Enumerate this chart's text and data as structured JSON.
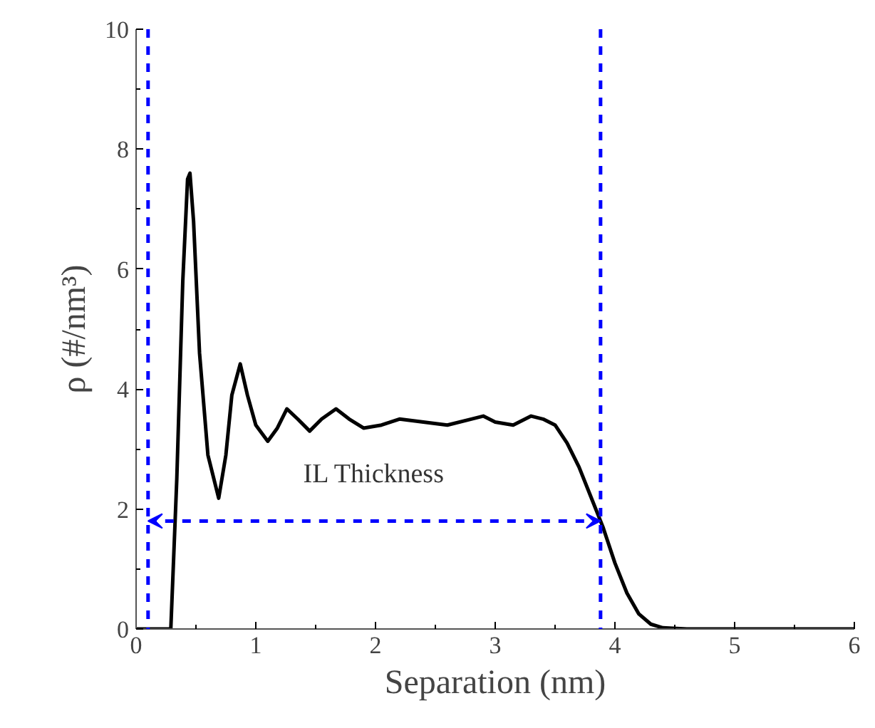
{
  "chart_data": {
    "type": "line",
    "xlabel": "Separation (nm)",
    "ylabel": "ρ (#/nm³)",
    "x": [
      0,
      0.2,
      0.29,
      0.34,
      0.39,
      0.43,
      0.45,
      0.48,
      0.53,
      0.6,
      0.69,
      0.75,
      0.8,
      0.87,
      0.93,
      1.0,
      1.1,
      1.18,
      1.26,
      1.35,
      1.45,
      1.55,
      1.67,
      1.78,
      1.9,
      2.05,
      2.2,
      2.4,
      2.6,
      2.8,
      2.9,
      3.0,
      3.15,
      3.3,
      3.4,
      3.5,
      3.6,
      3.7,
      3.8,
      3.9,
      4.0,
      4.1,
      4.2,
      4.3,
      4.4,
      4.6,
      6.0
    ],
    "series": [
      {
        "color": "#000000",
        "values": [
          0,
          0,
          0,
          2.5,
          5.8,
          7.5,
          7.6,
          6.8,
          4.6,
          2.9,
          2.18,
          2.9,
          3.9,
          4.42,
          3.9,
          3.4,
          3.13,
          3.35,
          3.67,
          3.5,
          3.3,
          3.5,
          3.67,
          3.5,
          3.35,
          3.4,
          3.5,
          3.45,
          3.4,
          3.5,
          3.55,
          3.45,
          3.4,
          3.55,
          3.5,
          3.4,
          3.1,
          2.7,
          2.2,
          1.7,
          1.1,
          0.6,
          0.25,
          0.08,
          0.02,
          0,
          0
        ]
      }
    ],
    "xlim": [
      0,
      6
    ],
    "ylim": [
      0,
      10
    ],
    "xticks": [
      0,
      1,
      2,
      3,
      4,
      5,
      6
    ],
    "yticks": [
      0,
      2,
      4,
      6,
      8,
      10
    ],
    "grid": false,
    "marker": "none",
    "line_style": "solid",
    "ref_lines": [
      {
        "axis": "x",
        "value": 0.1,
        "color": "#0000ff",
        "line_style": "dashed"
      },
      {
        "axis": "x",
        "value": 3.88,
        "color": "#0000ff",
        "line_style": "dashed"
      }
    ],
    "annotations": [
      "IL Thickness"
    ]
  }
}
